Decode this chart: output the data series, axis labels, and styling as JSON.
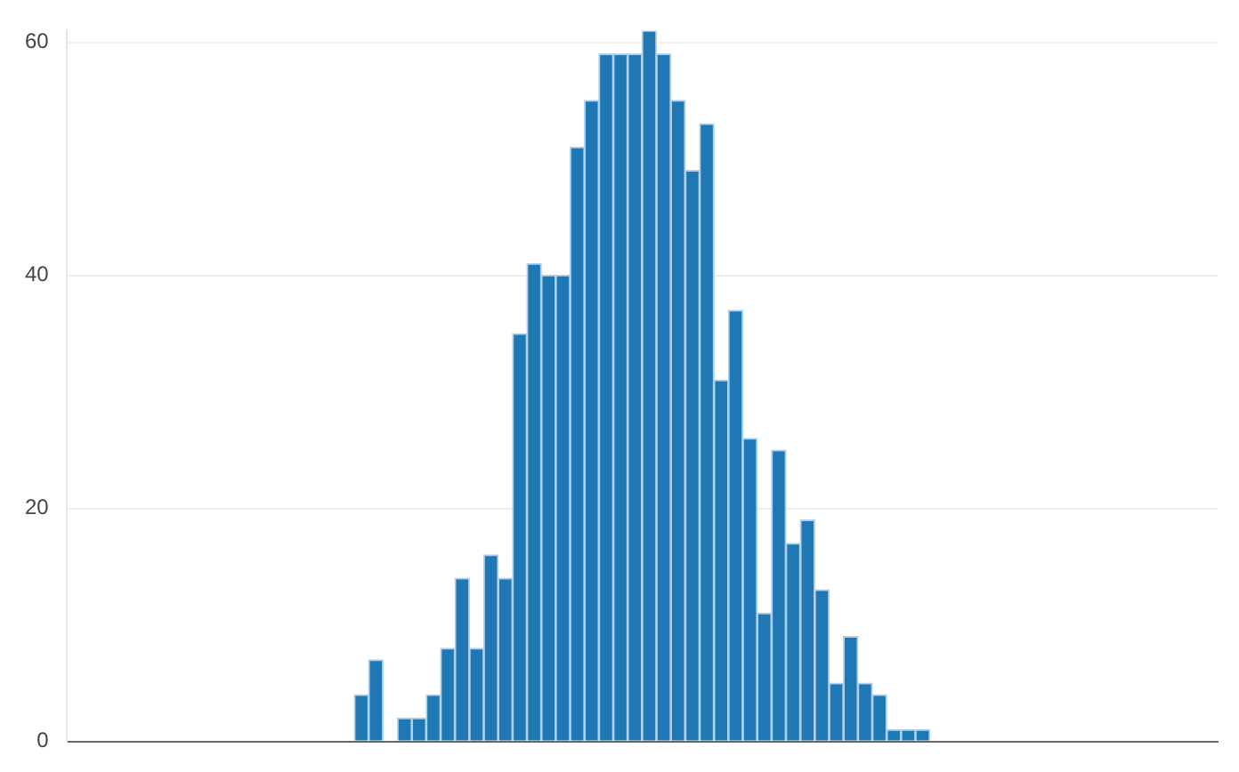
{
  "chart_data": {
    "type": "bar",
    "categories": [
      null,
      null,
      null,
      null,
      null,
      null,
      null,
      null,
      null,
      null,
      null,
      null,
      null,
      null,
      null,
      null,
      null,
      null,
      null,
      null,
      null,
      null,
      null,
      null,
      null,
      null,
      null,
      null,
      null,
      null,
      null,
      null,
      null,
      null,
      null,
      null,
      null,
      null,
      null,
      null,
      null,
      null,
      null,
      null,
      null,
      null,
      null,
      null,
      null,
      null,
      null,
      null,
      null,
      null,
      null,
      null,
      null,
      null,
      null,
      null,
      null,
      null,
      null,
      null,
      null,
      null,
      null,
      null,
      null,
      null,
      null,
      null,
      null,
      null,
      null,
      null,
      null,
      null,
      null,
      null
    ],
    "values": [
      0,
      0,
      0,
      0,
      0,
      0,
      0,
      0,
      0,
      0,
      0,
      0,
      0,
      0,
      0,
      0,
      0,
      0,
      0,
      0,
      4,
      7,
      0,
      2,
      2,
      4,
      8,
      14,
      8,
      16,
      14,
      35,
      41,
      40,
      40,
      51,
      55,
      59,
      59,
      59,
      61,
      59,
      55,
      49,
      53,
      31,
      37,
      26,
      11,
      25,
      17,
      19,
      13,
      5,
      9,
      5,
      4,
      1,
      1,
      1,
      0,
      0,
      0,
      0,
      0,
      0,
      0,
      0,
      0,
      0,
      0,
      0,
      0,
      0,
      0,
      0,
      0,
      0,
      0,
      0
    ],
    "color": "#1f77b4",
    "ylim": [
      0,
      61
    ],
    "yticks": [
      0,
      20,
      40,
      60
    ],
    "grid": "y",
    "tick_labels": "y"
  }
}
